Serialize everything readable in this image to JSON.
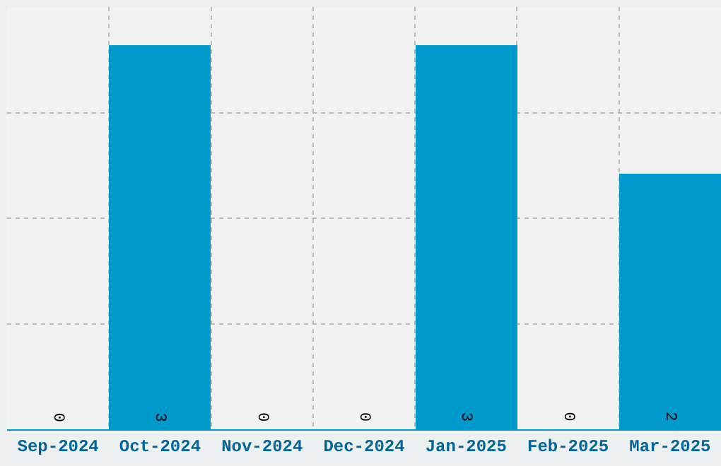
{
  "chart_data": {
    "type": "bar",
    "categories": [
      "Sep-2024",
      "Oct-2024",
      "Nov-2024",
      "Dec-2024",
      "Jan-2025",
      "Feb-2025",
      "Mar-2025"
    ],
    "values": [
      0,
      3,
      0,
      0,
      3,
      0,
      2
    ],
    "color": "#0099cc",
    "ylim": [
      0,
      3.3
    ],
    "yticks": [
      {
        "value": 0,
        "label": null
      },
      {
        "value": 0.825,
        "label": null
      },
      {
        "value": 1.65,
        "label": null
      },
      {
        "value": 2.475,
        "label": null
      }
    ],
    "grid": true,
    "data_labels": true,
    "tick_labels": "x"
  }
}
